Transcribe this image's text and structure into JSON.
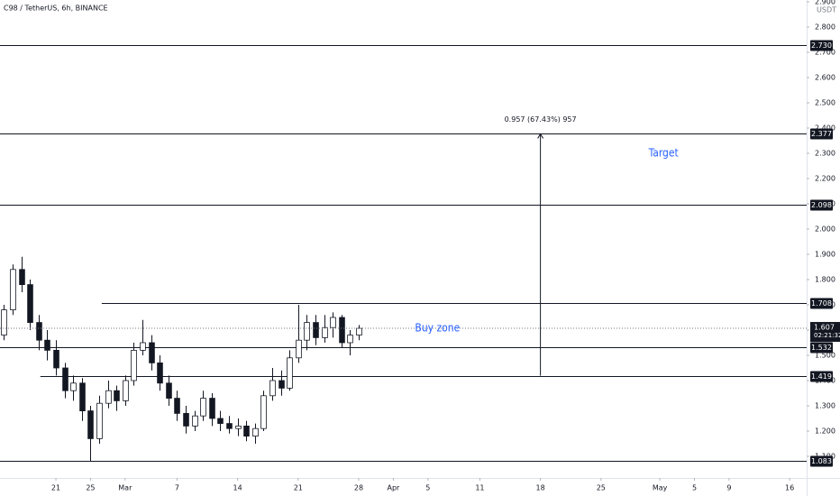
{
  "chart_data": {
    "type": "candlestick",
    "title": "C98 / TetherUS, 6h, BINANCE",
    "y_unit": "USDT",
    "x": [
      -6,
      -5,
      -4,
      -3,
      -2,
      -1,
      0,
      1,
      2,
      3,
      4,
      5,
      6,
      7,
      8,
      9,
      10,
      11,
      12,
      13,
      14,
      15,
      16,
      17,
      18,
      19,
      20,
      21,
      22,
      23,
      24,
      25,
      26,
      27,
      28,
      29,
      30,
      31,
      32,
      33,
      34,
      35
    ],
    "open": [
      1.58,
      1.68,
      1.84,
      1.78,
      1.63,
      1.56,
      1.52,
      1.45,
      1.36,
      1.39,
      1.28,
      1.17,
      1.31,
      1.36,
      1.32,
      1.4,
      1.52,
      1.55,
      1.47,
      1.39,
      1.33,
      1.27,
      1.22,
      1.26,
      1.33,
      1.25,
      1.23,
      1.21,
      1.22,
      1.18,
      1.21,
      1.34,
      1.4,
      1.37,
      1.49,
      1.56,
      1.63,
      1.57,
      1.61,
      1.65,
      1.55,
      1.58
    ],
    "high": [
      1.7,
      1.86,
      1.89,
      1.8,
      1.66,
      1.6,
      1.56,
      1.47,
      1.42,
      1.41,
      1.3,
      1.34,
      1.4,
      1.38,
      1.42,
      1.55,
      1.64,
      1.58,
      1.5,
      1.42,
      1.36,
      1.3,
      1.28,
      1.36,
      1.35,
      1.28,
      1.26,
      1.25,
      1.24,
      1.23,
      1.36,
      1.45,
      1.44,
      1.52,
      1.7,
      1.66,
      1.66,
      1.66,
      1.67,
      1.66,
      1.6,
      1.62
    ],
    "low": [
      1.56,
      1.66,
      1.75,
      1.6,
      1.52,
      1.48,
      1.42,
      1.33,
      1.32,
      1.24,
      1.08,
      1.15,
      1.29,
      1.28,
      1.3,
      1.38,
      1.5,
      1.44,
      1.36,
      1.3,
      1.24,
      1.19,
      1.2,
      1.24,
      1.22,
      1.2,
      1.19,
      1.18,
      1.16,
      1.15,
      1.2,
      1.32,
      1.34,
      1.36,
      1.47,
      1.52,
      1.54,
      1.55,
      1.57,
      1.53,
      1.5,
      1.56
    ],
    "close": [
      1.68,
      1.84,
      1.78,
      1.63,
      1.56,
      1.52,
      1.45,
      1.36,
      1.39,
      1.28,
      1.17,
      1.31,
      1.36,
      1.32,
      1.4,
      1.52,
      1.55,
      1.47,
      1.39,
      1.33,
      1.27,
      1.22,
      1.26,
      1.33,
      1.25,
      1.23,
      1.21,
      1.22,
      1.18,
      1.21,
      1.34,
      1.4,
      1.37,
      1.49,
      1.56,
      1.63,
      1.57,
      1.61,
      1.65,
      1.55,
      1.58,
      1.607
    ],
    "xlim": [
      -6.46,
      86.77
    ],
    "ylim": [
      1.0143,
      2.9071
    ],
    "xticks": [
      {
        "value": 0,
        "label": "21"
      },
      {
        "value": 4,
        "label": "25"
      },
      {
        "value": 8,
        "label": "Mar"
      },
      {
        "value": 14,
        "label": "7"
      },
      {
        "value": 21,
        "label": "14"
      },
      {
        "value": 28,
        "label": "21"
      },
      {
        "value": 35,
        "label": "28"
      },
      {
        "value": 39,
        "label": "Apr"
      },
      {
        "value": 43,
        "label": "5"
      },
      {
        "value": 49,
        "label": "11"
      },
      {
        "value": 56,
        "label": "18"
      },
      {
        "value": 63,
        "label": "25"
      },
      {
        "value": 69.8,
        "label": "May"
      },
      {
        "value": 73.8,
        "label": "5"
      },
      {
        "value": 77.8,
        "label": "9"
      },
      {
        "value": 84.8,
        "label": "16"
      }
    ],
    "yticks": [
      {
        "value": 2.9,
        "label": "2.900"
      },
      {
        "value": 2.8,
        "label": "2.800"
      },
      {
        "value": 2.7,
        "label": "2.700"
      },
      {
        "value": 2.6,
        "label": "2.600"
      },
      {
        "value": 2.5,
        "label": "2.500"
      },
      {
        "value": 2.4,
        "label": "2.400"
      },
      {
        "value": 2.3,
        "label": "2.300"
      },
      {
        "value": 2.2,
        "label": "2.200"
      },
      {
        "value": 2.1,
        "label": "2.100"
      },
      {
        "value": 2.0,
        "label": "2.000"
      },
      {
        "value": 1.9,
        "label": "1.900"
      },
      {
        "value": 1.8,
        "label": "1.800"
      },
      {
        "value": 1.7,
        "label": "1.700"
      },
      {
        "value": 1.6,
        "label": "1.600"
      },
      {
        "value": 1.5,
        "label": "1.500"
      },
      {
        "value": 1.4,
        "label": "1.400"
      },
      {
        "value": 1.3,
        "label": "1.300"
      },
      {
        "value": 1.2,
        "label": "1.200"
      },
      {
        "value": 1.1,
        "label": "1.100"
      }
    ],
    "levels": [
      {
        "value": 2.73,
        "label": "2.730"
      },
      {
        "value": 2.377,
        "label": "2.377"
      },
      {
        "value": 2.098,
        "label": "2.098"
      },
      {
        "value": 1.708,
        "label": "1.708",
        "from": 5.3
      },
      {
        "value": 1.532,
        "label": "1.532"
      },
      {
        "value": 1.419,
        "label": "1.419",
        "from": -1.8
      },
      {
        "value": 1.083,
        "label": "1.083"
      }
    ],
    "last_price": {
      "value": 1.607,
      "label": "1.607",
      "countdown": "02:21:32"
    },
    "measure": {
      "from": 1.419,
      "to": 2.377,
      "x": 56,
      "label": "0.957 (67.43%) 957"
    },
    "annotations": [
      {
        "text": "Buy zone",
        "x": 41.5,
        "y": 1.607
      },
      {
        "text": "Target",
        "x": 68.5,
        "y": 2.3
      }
    ]
  }
}
